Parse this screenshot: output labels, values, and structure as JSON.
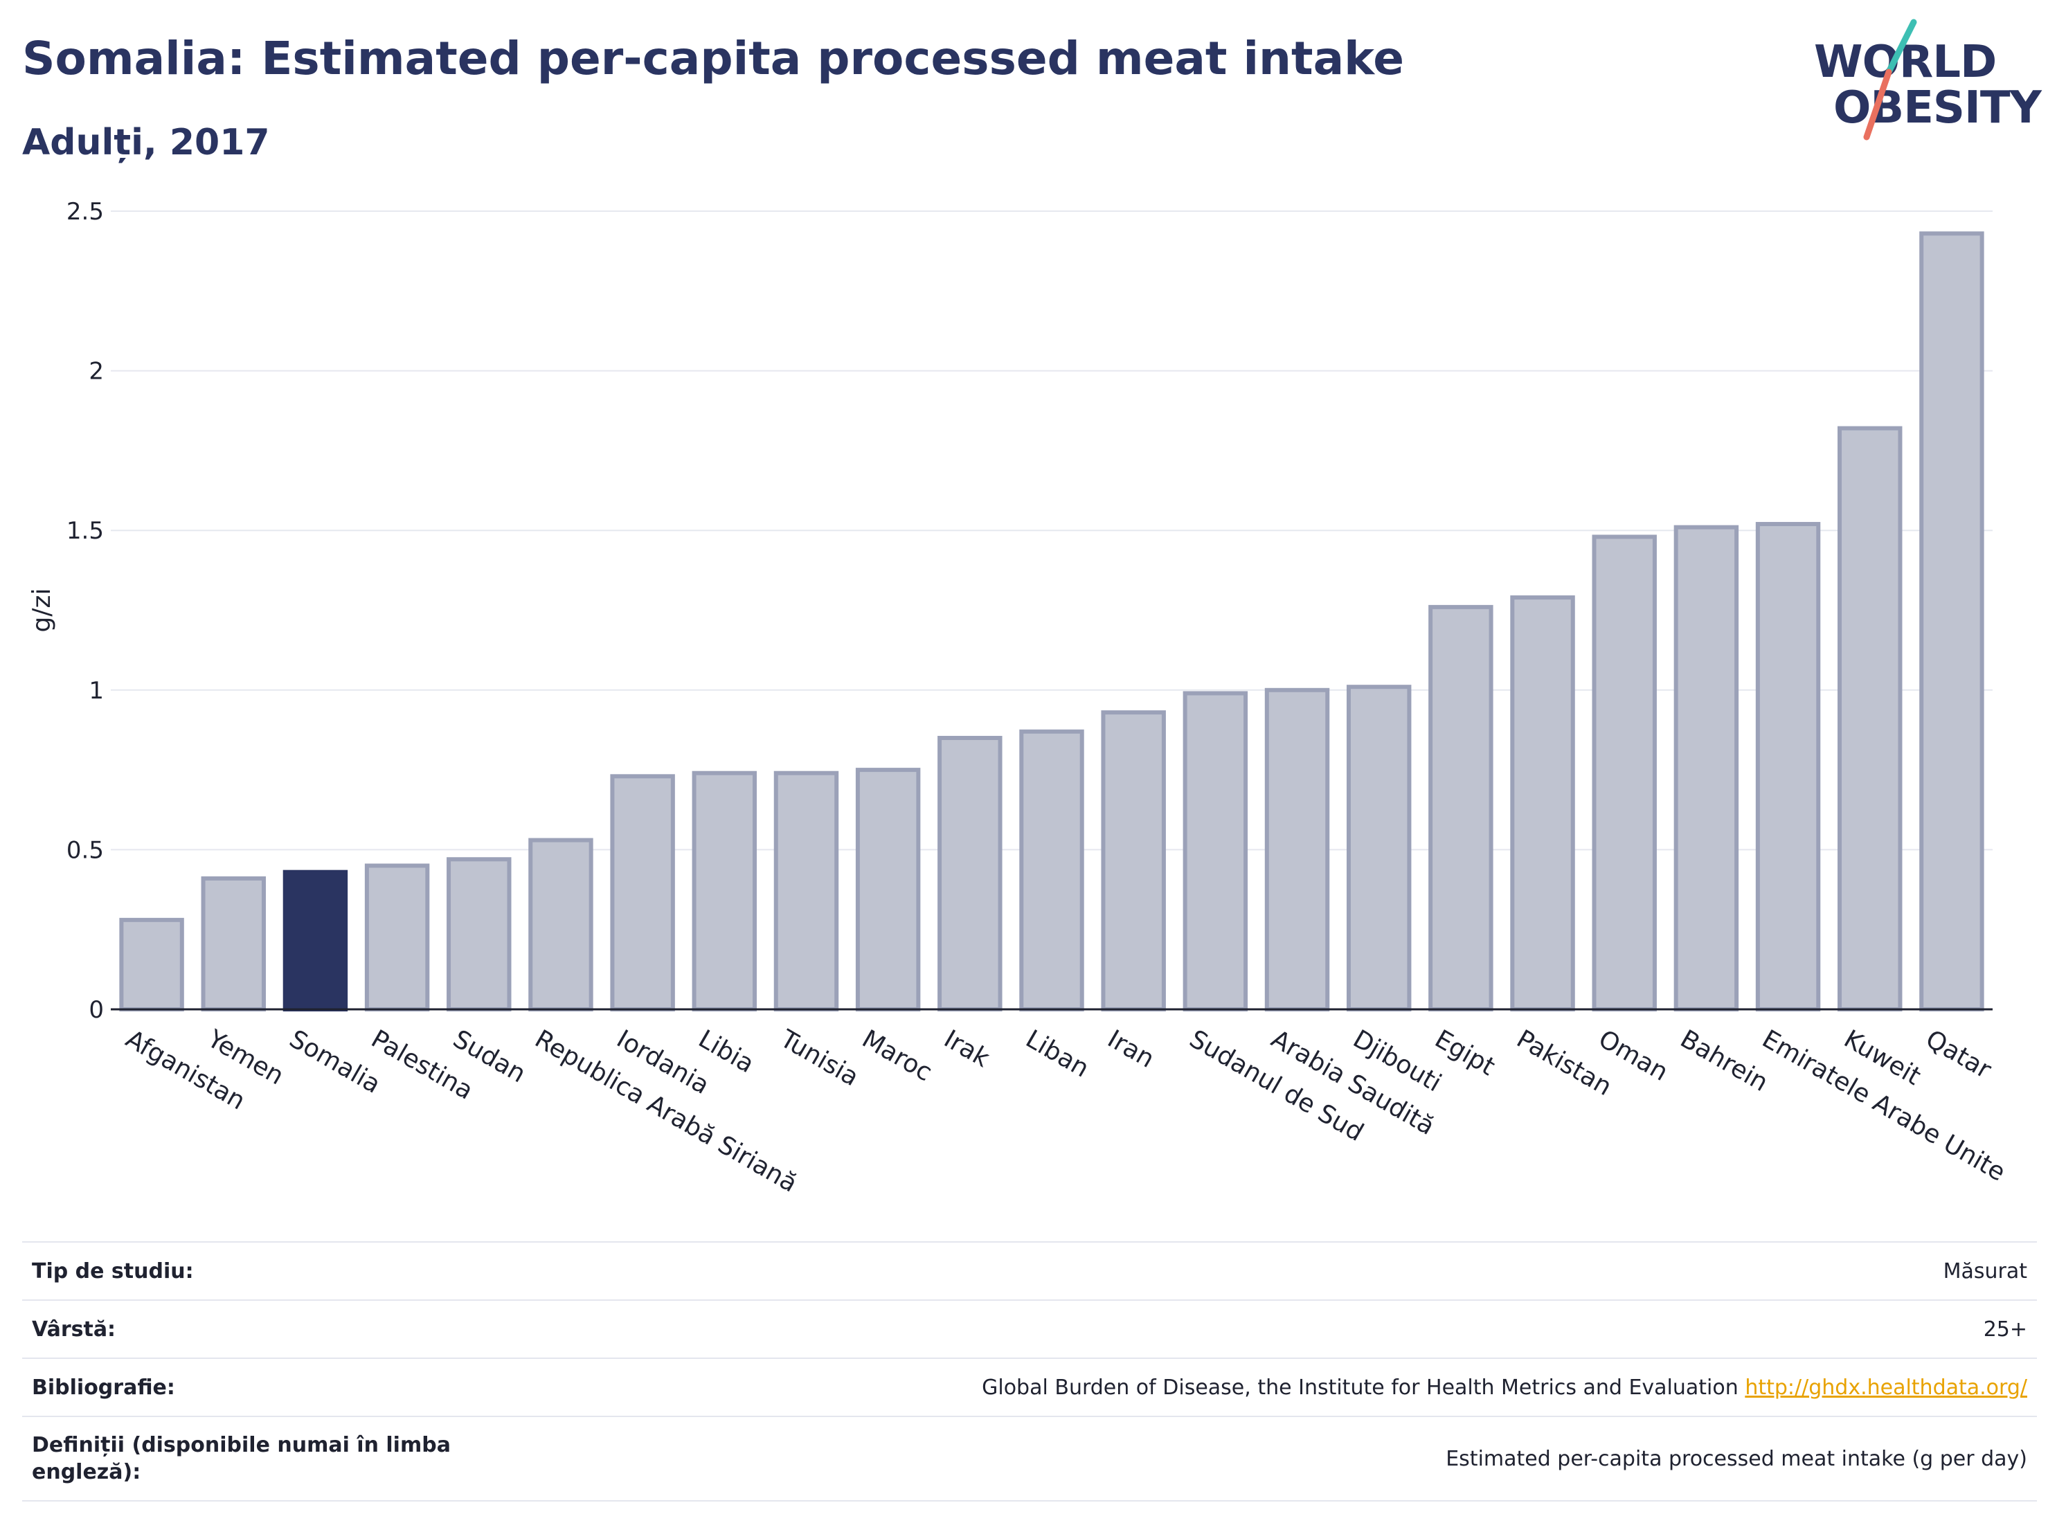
{
  "header": {
    "title": "Somalia: Estimated per-capita processed meat intake",
    "subtitle": "Adulți, 2017"
  },
  "logo": {
    "line1": "WORLD",
    "line2": "OBESITY"
  },
  "colors": {
    "highlight": "#2a3461",
    "bar_fill": "#bfc3d0",
    "bar_stroke": "#9ba1b8",
    "accent_teal": "#3dbfb3",
    "accent_red": "#e9705f",
    "link": "#e8a200"
  },
  "chart_data": {
    "type": "bar",
    "ylabel": "g/zi",
    "ylim": [
      0,
      2.5
    ],
    "yticks": [
      "0",
      "0.5",
      "1",
      "1.5",
      "2",
      "2.5"
    ],
    "highlight": "Somalia",
    "categories": [
      "Afganistan",
      "Yemen",
      "Somalia",
      "Palestina",
      "Sudan",
      "Republica Arabă Siriană",
      "Iordania",
      "Libia",
      "Tunisia",
      "Maroc",
      "Irak",
      "Liban",
      "Iran",
      "Sudanul de Sud",
      "Arabia Saudită",
      "Djibouti",
      "Egipt",
      "Pakistan",
      "Oman",
      "Bahrein",
      "Emiratele Arabe Unite",
      "Kuweit",
      "Qatar"
    ],
    "values": [
      0.28,
      0.41,
      0.43,
      0.45,
      0.47,
      0.53,
      0.73,
      0.74,
      0.74,
      0.75,
      0.85,
      0.87,
      0.93,
      0.99,
      1.0,
      1.01,
      1.26,
      1.29,
      1.48,
      1.51,
      1.52,
      1.82,
      2.43
    ]
  },
  "info": {
    "study_type_label": "Tip de studiu:",
    "study_type_value": "Măsurat",
    "age_label": "Vârstă:",
    "age_value": "25+",
    "bibliography_label": "Bibliografie:",
    "bibliography_value": "Global Burden of Disease, the Institute for Health Metrics and Evaluation",
    "bibliography_link": "http://ghdx.healthdata.org/",
    "definitions_label": "Definiții (disponibile numai în limba engleză):",
    "definitions_value": "Estimated per-capita processed meat intake (g per day)"
  }
}
